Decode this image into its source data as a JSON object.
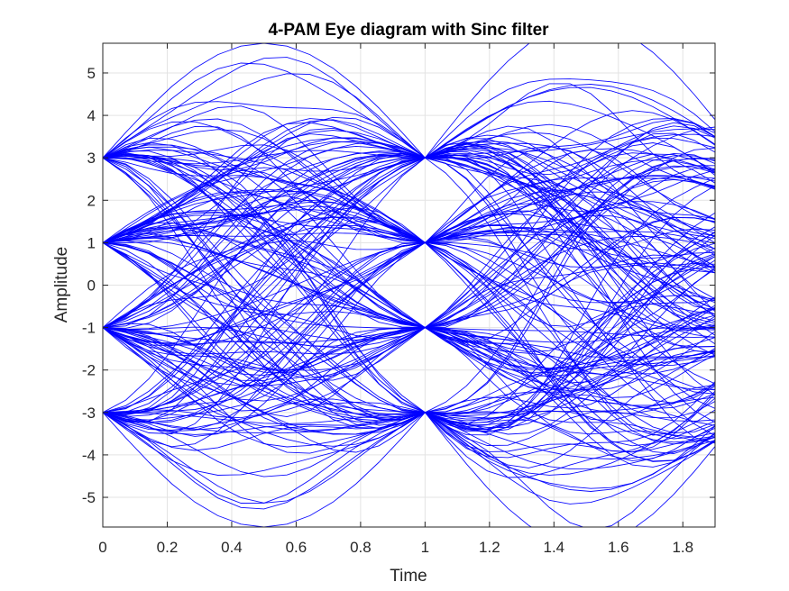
{
  "chart_data": {
    "type": "line",
    "title": "4-PAM Eye diagram with Sinc filter",
    "xlabel": "Time",
    "ylabel": "Amplitude",
    "xlim": [
      0,
      1.9
    ],
    "ylim": [
      -5.7,
      5.7
    ],
    "xticks": [
      0,
      0.2,
      0.4,
      0.6,
      0.8,
      1,
      1.2,
      1.4,
      1.6,
      1.8
    ],
    "xtick_labels": [
      "0",
      "0.2",
      "0.4",
      "0.6",
      "0.8",
      "1",
      "1.2",
      "1.4",
      "1.6",
      "1.8"
    ],
    "yticks": [
      5,
      4,
      3,
      2,
      1,
      0,
      -1,
      -2,
      -3,
      -4,
      -5
    ],
    "ytick_labels": [
      "5",
      "4",
      "3",
      "2",
      "1",
      "0",
      "-1",
      "-2",
      "-3",
      "-4",
      "-5"
    ],
    "grid": true,
    "line_color": "#0000ff",
    "symbol_levels": [
      -3,
      -1,
      1,
      3
    ],
    "symbol_times": [
      0,
      1
    ],
    "peak_amplitude": 5.7,
    "series": [
      {
        "values_note": "",
        "traces": [
          {
            "x": [
              0,
              0.5,
              1,
              1.5,
              1.9
            ],
            "y": [
              3,
              5.7,
              3,
              5.7,
              3.9
            ]
          },
          {
            "x": [
              0,
              0.5,
              1,
              1.5,
              1.9
            ],
            "y": [
              -3,
              -5.7,
              -3,
              -5.7,
              -3.8
            ]
          },
          {
            "x": [
              0,
              0.5,
              1,
              1.5,
              1.9
            ],
            "y": [
              3,
              4.8,
              3,
              4.6,
              3.2
            ]
          },
          {
            "x": [
              0,
              0.5,
              1,
              1.5,
              1.9
            ],
            "y": [
              -3,
              -4.9,
              -3,
              -4.7,
              -3.1
            ]
          },
          {
            "x": [
              0,
              0.5,
              1,
              1.5,
              1.9
            ],
            "y": [
              1,
              0,
              -1,
              0,
              1
            ]
          },
          {
            "x": [
              0,
              0.5,
              1,
              1.5,
              1.9
            ],
            "y": [
              -1,
              0,
              1,
              0,
              -1
            ]
          }
        ]
      }
    ]
  }
}
